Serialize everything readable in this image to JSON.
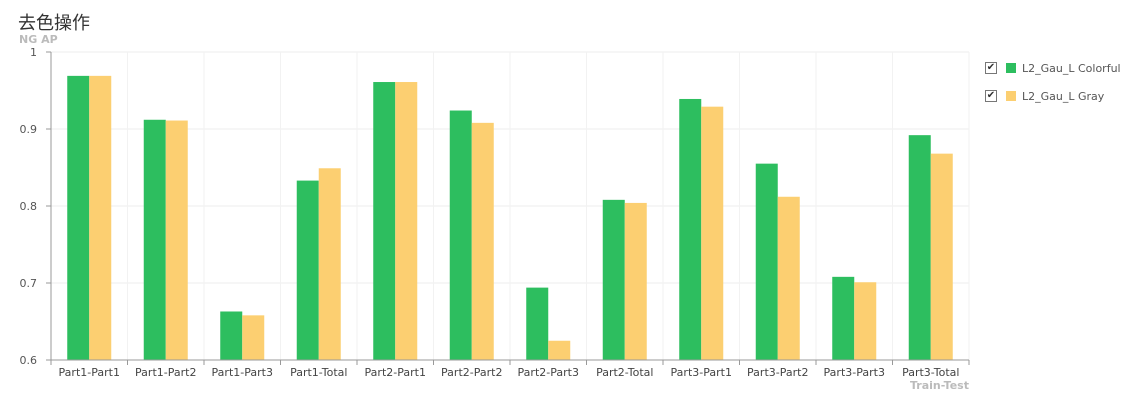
{
  "title": "去色操作",
  "chart_data": {
    "type": "bar",
    "title": "去色操作",
    "ylabel": "NG AP",
    "xlabel": "Train-Test",
    "ylim": [
      0.6,
      1.0
    ],
    "yticks": [
      0.6,
      0.7,
      0.8,
      0.9,
      1
    ],
    "grid": true,
    "legend_position": "right",
    "categories": [
      "Part1-Part1",
      "Part1-Part2",
      "Part1-Part3",
      "Part1-Total",
      "Part2-Part1",
      "Part2-Part2",
      "Part2-Part3",
      "Part2-Total",
      "Part3-Part1",
      "Part3-Part2",
      "Part3-Part3",
      "Part3-Total"
    ],
    "series": [
      {
        "name": "L2_Gau_L Colorful",
        "color": "#2dbe5f",
        "values": [
          0.969,
          0.912,
          0.663,
          0.833,
          0.961,
          0.924,
          0.694,
          0.808,
          0.939,
          0.855,
          0.708,
          0.892
        ]
      },
      {
        "name": "L2_Gau_L Gray",
        "color": "#fccf71",
        "values": [
          0.969,
          0.911,
          0.658,
          0.849,
          0.961,
          0.908,
          0.625,
          0.804,
          0.929,
          0.812,
          0.701,
          0.868
        ]
      }
    ]
  },
  "legend": {
    "items": [
      {
        "label": "L2_Gau_L Colorful",
        "checked": true,
        "check_glyph": "✔",
        "color": "#2dbe5f"
      },
      {
        "label": "L2_Gau_L Gray",
        "checked": true,
        "check_glyph": "✔",
        "color": "#fccf71"
      }
    ]
  }
}
